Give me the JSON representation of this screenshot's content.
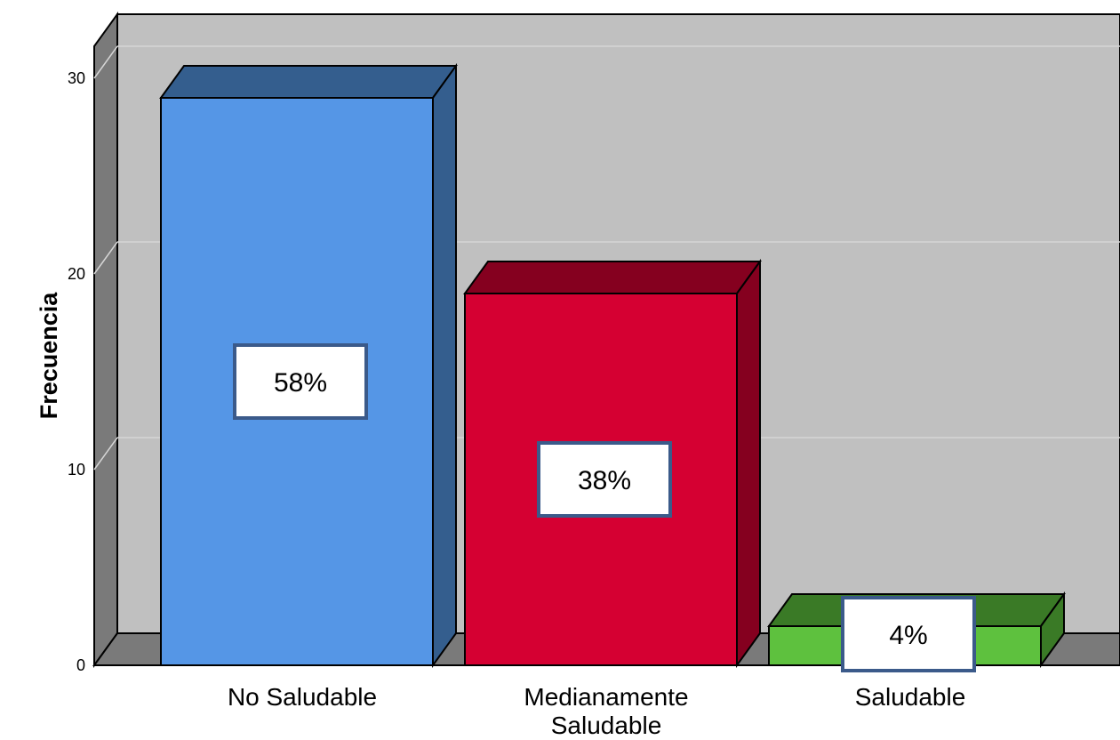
{
  "chart_data": {
    "type": "bar",
    "style": "3d",
    "categories": [
      "No Saludable",
      "Medianamente Saludable",
      "Saludable"
    ],
    "category_label_lines": [
      [
        "No Saludable"
      ],
      [
        "Medianamente",
        "Saludable"
      ],
      [
        "Saludable"
      ]
    ],
    "values": [
      29,
      19,
      2
    ],
    "data_labels": [
      "58%",
      "38%",
      "4%"
    ],
    "bar_colors": [
      "#5596E6",
      "#D50032",
      "#5EC13E"
    ],
    "bar_side_colors": [
      "#345E8E",
      "#85001F",
      "#3A7A26"
    ],
    "title": "",
    "xlabel": "",
    "ylabel": "Frecuencia",
    "ylim": [
      0,
      30
    ],
    "yticks": [
      0,
      10,
      20,
      30
    ],
    "grid": true,
    "legend": "none",
    "plot_background": "#C0C0C0"
  }
}
